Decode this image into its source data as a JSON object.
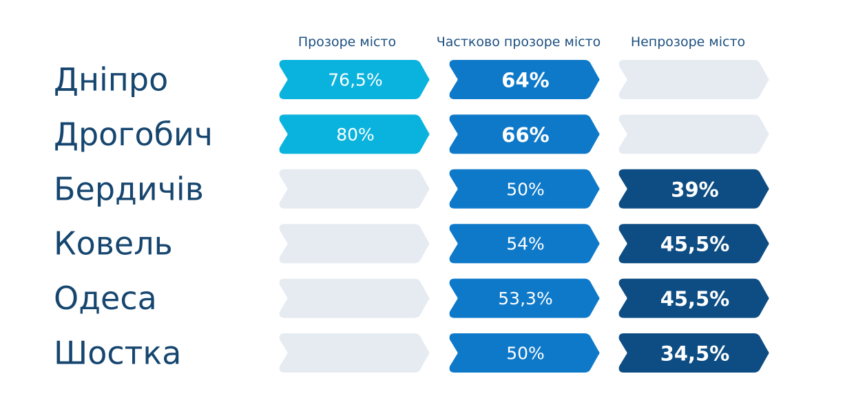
{
  "chart_data": {
    "type": "table",
    "columns": [
      "Прозоре місто",
      "Частково прозоре місто",
      "Непрозоре місто"
    ],
    "rows": [
      {
        "city": "Дніпро",
        "values": [
          "76,5%",
          "64%",
          null
        ],
        "bold": [
          false,
          true,
          false
        ]
      },
      {
        "city": "Дрогобич",
        "values": [
          "80%",
          "66%",
          null
        ],
        "bold": [
          false,
          true,
          false
        ]
      },
      {
        "city": "Бердичів",
        "values": [
          null,
          "50%",
          "39%"
        ],
        "bold": [
          false,
          false,
          true
        ]
      },
      {
        "city": "Ковель",
        "values": [
          null,
          "54%",
          "45,5%"
        ],
        "bold": [
          false,
          false,
          true
        ]
      },
      {
        "city": "Одеса",
        "values": [
          null,
          "53,3%",
          "45,5%"
        ],
        "bold": [
          false,
          false,
          true
        ]
      },
      {
        "city": "Шостка",
        "values": [
          null,
          "50%",
          "34,5%"
        ],
        "bold": [
          false,
          false,
          true
        ]
      }
    ],
    "colors": {
      "column_fill": [
        "#0ab3dd",
        "#0f79c9",
        "#0d4d83"
      ],
      "empty_fill": "#e6ebf2",
      "city_text": "#16466f",
      "header_text": "#1c4f80"
    }
  }
}
